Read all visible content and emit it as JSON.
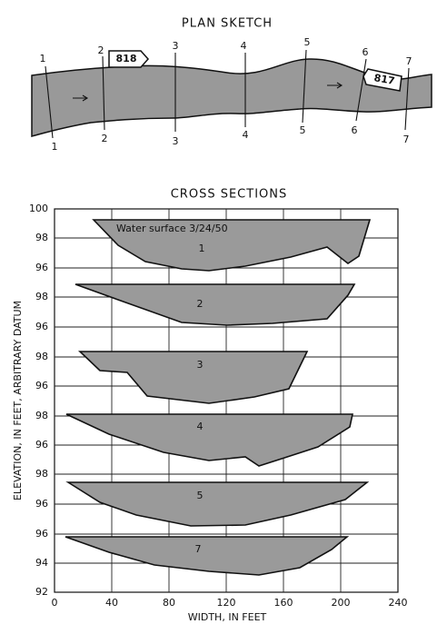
{
  "plan": {
    "title": "PLAN SKETCH",
    "section_labels_top": [
      "1",
      "2",
      "3",
      "4",
      "5",
      "6",
      "7"
    ],
    "section_labels_bottom": [
      "1",
      "2",
      "3",
      "4",
      "5",
      "6",
      "7"
    ],
    "gauges": [
      "818",
      "817"
    ]
  },
  "sections": {
    "title": "CROSS SECTIONS",
    "annotation": "Water surface 3/24/50",
    "section_names": [
      "1",
      "2",
      "3",
      "4",
      "5",
      "7"
    ],
    "y_axis_title": "ELEVATION, IN FEET, ARBITRARY DATUM",
    "y_labels": [
      "100",
      "98",
      "96",
      "98",
      "96",
      "98",
      "96",
      "98",
      "96",
      "98",
      "96",
      "96",
      "94",
      "92"
    ],
    "x_axis_title": "WIDTH, IN FEET",
    "x_labels": [
      "0",
      "40",
      "80",
      "120",
      "160",
      "200",
      "240"
    ]
  }
}
